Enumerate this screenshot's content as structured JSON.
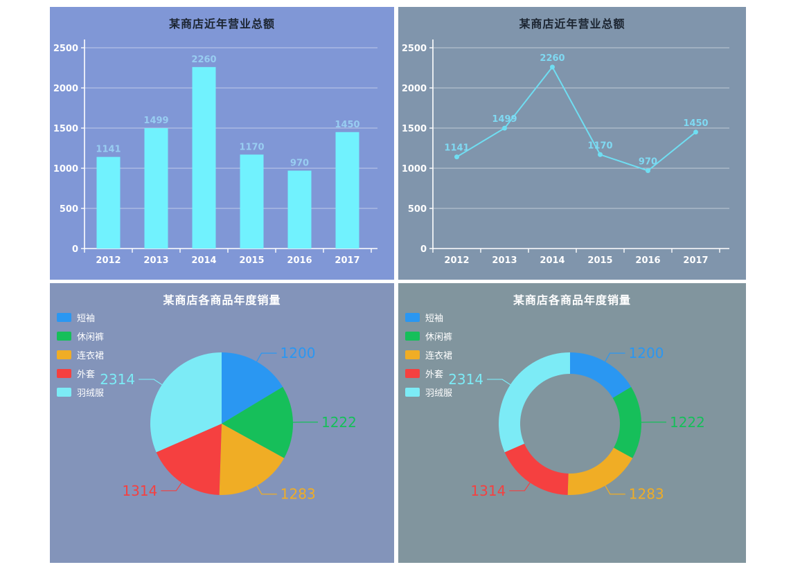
{
  "chart_data": [
    {
      "id": "bar",
      "type": "bar",
      "title": "某商店近年营业总额",
      "title_color": "#1b2430",
      "background": "#8097d6",
      "categories": [
        "2012",
        "2013",
        "2014",
        "2015",
        "2016",
        "2017"
      ],
      "values": [
        1141,
        1499,
        2260,
        1170,
        970,
        1450
      ],
      "ylim": [
        0,
        2500
      ],
      "yticks": [
        0,
        500,
        1000,
        1500,
        2000,
        2500
      ],
      "grid": true,
      "legend_position": "none",
      "bar_color": "#71f2fe",
      "value_label_color": "#98cdf1",
      "axis_color": "#ffffff",
      "grid_color": "rgba(255,255,255,0.5)"
    },
    {
      "id": "line",
      "type": "line",
      "title": "某商店近年营业总额",
      "title_color": "#1b2430",
      "background": "#8095ac",
      "categories": [
        "2012",
        "2013",
        "2014",
        "2015",
        "2016",
        "2017"
      ],
      "values": [
        1141,
        1499,
        2260,
        1170,
        970,
        1450
      ],
      "ylim": [
        0,
        2500
      ],
      "yticks": [
        0,
        500,
        1000,
        1500,
        2000,
        2500
      ],
      "grid": true,
      "legend_position": "none",
      "line_color": "#6fdef2",
      "value_label_color": "#7fd9f2",
      "axis_color": "#ffffff",
      "grid_color": "rgba(255,255,255,0.5)"
    },
    {
      "id": "pie",
      "type": "pie",
      "donut": false,
      "title": "某商店各商品年度销量",
      "title_color": "#ffffff",
      "background": "#8394ba",
      "labels": [
        "短袖",
        "休闲裤",
        "连衣裙",
        "外套",
        "羽绒服"
      ],
      "values": [
        1200,
        1222,
        1283,
        1314,
        2314
      ],
      "colors": [
        "#2a97f2",
        "#16bf5a",
        "#f0ad25",
        "#f54040",
        "#7cebf6"
      ],
      "legend_position": "top-left"
    },
    {
      "id": "donut",
      "type": "pie",
      "donut": true,
      "title": "某商店各商品年度销量",
      "title_color": "#ffffff",
      "background": "#81959e",
      "labels": [
        "短袖",
        "休闲裤",
        "连衣裙",
        "外套",
        "羽绒服"
      ],
      "values": [
        1200,
        1222,
        1283,
        1314,
        2314
      ],
      "colors": [
        "#2a97f2",
        "#16bf5a",
        "#f0ad25",
        "#f54040",
        "#7cebf6"
      ],
      "legend_position": "top-left"
    }
  ]
}
